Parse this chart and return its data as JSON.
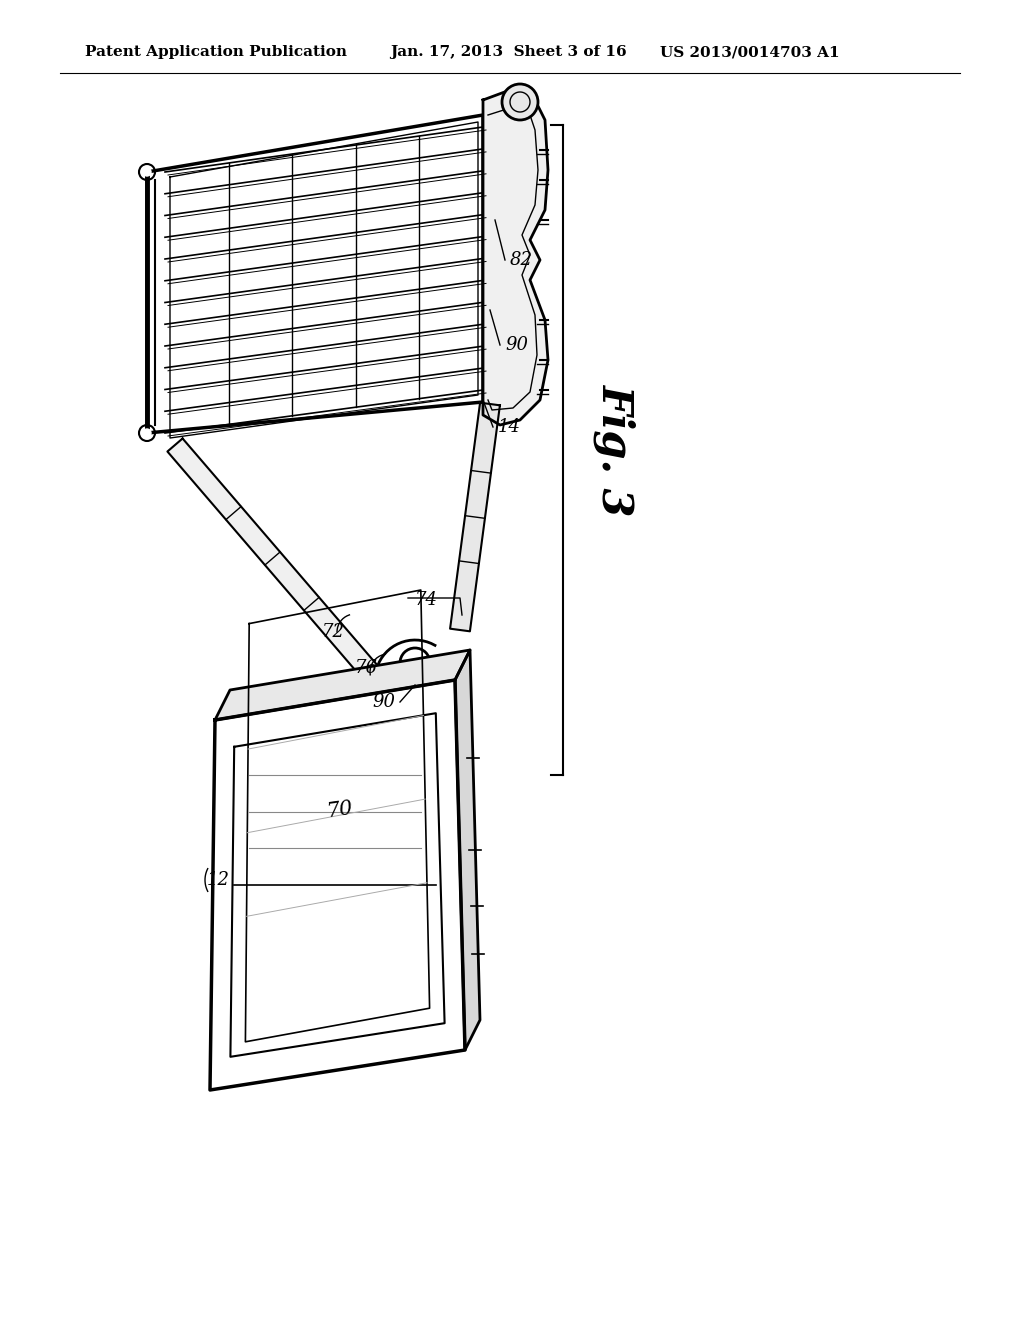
{
  "background_color": "#ffffff",
  "header_left": "Patent Application Publication",
  "header_mid": "Jan. 17, 2013  Sheet 3 of 16",
  "header_right": "US 2013/0014703 A1",
  "fig_label": "Fig. 3",
  "line_color": "#000000",
  "gray_color": "#888888",
  "light_gray": "#cccccc"
}
